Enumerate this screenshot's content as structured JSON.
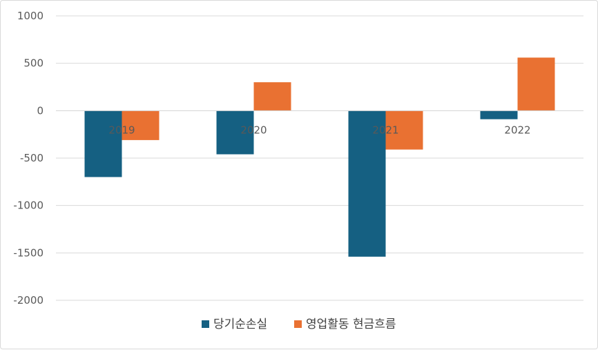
{
  "chart_data": {
    "type": "bar",
    "categories": [
      "2019",
      "2020",
      "2021",
      "2022"
    ],
    "series": [
      {
        "name": "당기순손실",
        "color": "#156082",
        "values": [
          -700,
          -460,
          -1540,
          -90
        ]
      },
      {
        "name": "영업활동 현금흐름",
        "color": "#E97132",
        "values": [
          -310,
          300,
          -410,
          560
        ]
      }
    ],
    "yticks": [
      1000,
      500,
      0,
      -500,
      -1000,
      -1500,
      -2000
    ],
    "ylim": [
      -2000,
      1000
    ],
    "grid": true,
    "legend": "bottom",
    "title": "",
    "xlabel": "",
    "ylabel": ""
  }
}
